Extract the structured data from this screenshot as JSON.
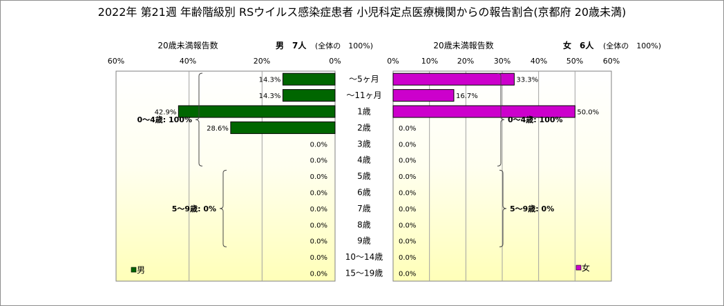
{
  "chart_data": {
    "type": "bar",
    "title": "2022年 第21週 年齢階級別 RSウイルス感染症患者 小児科定点医療機関からの報告割合(京都府 20歳未満)",
    "categories": [
      "～5ヶ月",
      "～11ヶ月",
      "1歳",
      "2歳",
      "3歳",
      "4歳",
      "5歳",
      "6歳",
      "7歳",
      "8歳",
      "9歳",
      "10～14歳",
      "15～19歳"
    ],
    "xlim": [
      0,
      60
    ],
    "ticks": [
      "60%",
      "40%",
      "20%",
      "0%",
      "0%",
      "10%",
      "20%",
      "30%",
      "40%",
      "50%",
      "60%"
    ],
    "grid": true,
    "panels": {
      "male": {
        "axis_label": "20歳未満報告数",
        "header": "男　7人",
        "header_note": "(全体の　100%)",
        "legend": "男",
        "color": "#006600",
        "values": [
          14.3,
          14.3,
          42.9,
          28.6,
          0,
          0,
          0,
          0,
          0,
          0,
          0,
          0,
          0
        ],
        "value_labels": [
          "14.3%",
          "14.3%",
          "42.9%",
          "28.6%",
          "0.0%",
          "0.0%",
          "0.0%",
          "0.0%",
          "0.0%",
          "0.0%",
          "0.0%",
          "0.0%",
          "0.0%"
        ],
        "groups": [
          {
            "label": "0～4歳: 100%",
            "from": 0,
            "to": 5
          },
          {
            "label": "5～9歳: 0%",
            "from": 6,
            "to": 10
          }
        ]
      },
      "female": {
        "axis_label": "20歳未満報告数",
        "header": "女　6人",
        "header_note": "(全体の　100%)",
        "legend": "女",
        "color": "#cc00cc",
        "values": [
          33.3,
          16.7,
          50.0,
          0,
          0,
          0,
          0,
          0,
          0,
          0,
          0,
          0,
          0
        ],
        "value_labels": [
          "33.3%",
          "16.7%",
          "50.0%",
          "0.0%",
          "0.0%",
          "0.0%",
          "0.0%",
          "0.0%",
          "0.0%",
          "0.0%",
          "0.0%",
          "0.0%",
          "0.0%"
        ],
        "groups": [
          {
            "label": "0～4歳: 100%",
            "from": 0,
            "to": 5
          },
          {
            "label": "5～9歳: 0%",
            "from": 6,
            "to": 10
          }
        ]
      }
    }
  }
}
